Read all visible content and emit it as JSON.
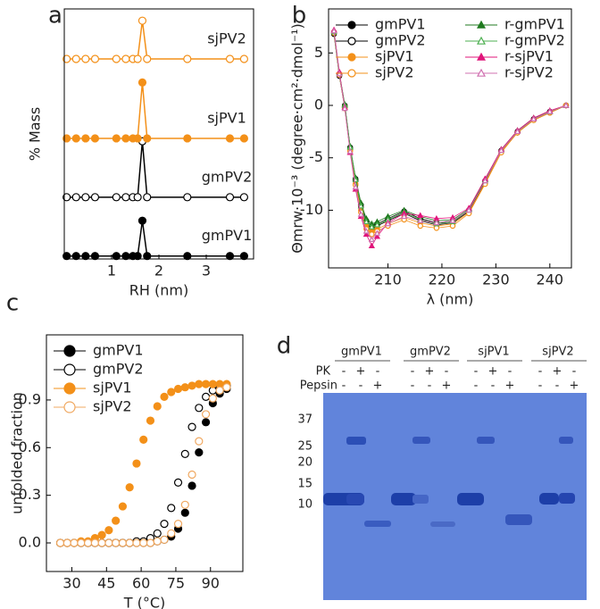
{
  "panel_labels": [
    "a",
    "b",
    "c",
    "d"
  ],
  "chart_data": [
    {
      "type": "line",
      "xlabel": "RH (nm)",
      "ylabel": "% Mass",
      "x": [
        0.05,
        0.25,
        0.45,
        0.65,
        1.1,
        1.3,
        1.45,
        1.55,
        1.65,
        1.75,
        2.6,
        3.5,
        3.8
      ],
      "xlim": [
        0,
        4.0
      ],
      "ylim": [
        -0.05,
        4.2
      ],
      "xticks": [
        1,
        2,
        3
      ],
      "series": [
        {
          "name": "gmPV1",
          "color": "#000000",
          "marker": "circle",
          "filled": true,
          "values": [
            0,
            0,
            0,
            0,
            0,
            0,
            0,
            0,
            0.6,
            0,
            0,
            0,
            0
          ]
        },
        {
          "name": "gmPV2",
          "color": "#000000",
          "marker": "circle",
          "filled": false,
          "values": [
            1.0,
            1.0,
            1.0,
            1.0,
            1.0,
            1.0,
            1.0,
            1.0,
            1.95,
            1.0,
            1.0,
            1.0,
            1.0
          ]
        },
        {
          "name": "sjPV1",
          "color": "#f39019",
          "marker": "circle",
          "filled": true,
          "values": [
            2.0,
            2.0,
            2.0,
            2.0,
            2.0,
            2.0,
            2.0,
            2.0,
            2.95,
            2.0,
            2.0,
            2.0,
            2.0
          ]
        },
        {
          "name": "sjPV2",
          "color": "#f39019",
          "marker": "circle",
          "filled": false,
          "values": [
            3.35,
            3.35,
            3.35,
            3.35,
            3.35,
            3.35,
            3.35,
            3.35,
            4.0,
            3.35,
            3.35,
            3.35,
            3.35
          ]
        }
      ]
    },
    {
      "type": "line",
      "xlabel": "λ (nm)",
      "ylabel": "Θmrw·10⁻³ (degree·cm²·dmol⁻¹)",
      "x": [
        200,
        201,
        202,
        203,
        204,
        205,
        206,
        207,
        208,
        210,
        213,
        216,
        219,
        222,
        225,
        228,
        231,
        234,
        237,
        240,
        243
      ],
      "xlim": [
        199,
        244
      ],
      "ylim": [
        -15.5,
        9.2
      ],
      "xticks": [
        210,
        220,
        230,
        240
      ],
      "yticks": [
        -10,
        -5,
        0,
        5
      ],
      "legend": "upper left",
      "series": [
        {
          "name": "gmPV1",
          "color": "#000000",
          "marker": "circle",
          "filled": true,
          "values": [
            7,
            3,
            0,
            -4,
            -7,
            -9.5,
            -11,
            -11.5,
            -11.3,
            -10.8,
            -10.1,
            -10.8,
            -11.2,
            -11.1,
            -10,
            -7.2,
            -4.3,
            -2.5,
            -1.3,
            -0.6,
            0
          ]
        },
        {
          "name": "gmPV2",
          "color": "#000000",
          "marker": "circle",
          "filled": false,
          "values": [
            6.8,
            2.8,
            -0.2,
            -4.2,
            -7.2,
            -9.7,
            -11.2,
            -11.8,
            -11.5,
            -11,
            -10.3,
            -11,
            -11.4,
            -11.2,
            -10.1,
            -7.3,
            -4.4,
            -2.6,
            -1.4,
            -0.7,
            0
          ]
        },
        {
          "name": "sjPV1",
          "color": "#f39019",
          "marker": "circle",
          "filled": true,
          "values": [
            7,
            3,
            -0.1,
            -4.3,
            -7.5,
            -10,
            -11.5,
            -12,
            -11.8,
            -11.3,
            -10.7,
            -11.2,
            -11.5,
            -11.3,
            -10.2,
            -7.4,
            -4.4,
            -2.6,
            -1.4,
            -0.7,
            0
          ]
        },
        {
          "name": "sjPV2",
          "color": "#f39019",
          "marker": "circle",
          "filled": false,
          "values": [
            6.9,
            2.9,
            -0.3,
            -4.4,
            -7.6,
            -10.2,
            -11.8,
            -12.3,
            -12,
            -11.5,
            -10.9,
            -11.5,
            -11.7,
            -11.5,
            -10.3,
            -7.5,
            -4.5,
            -2.6,
            -1.4,
            -0.7,
            0
          ]
        },
        {
          "name": "r-gmPV1",
          "color": "#1f7a1f",
          "marker": "triangle",
          "filled": true,
          "values": [
            7.1,
            3.1,
            0.1,
            -3.9,
            -6.9,
            -9.3,
            -10.8,
            -11.3,
            -11.1,
            -10.6,
            -10,
            -10.6,
            -11,
            -10.9,
            -9.9,
            -7.1,
            -4.2,
            -2.4,
            -1.2,
            -0.6,
            0
          ]
        },
        {
          "name": "r-gmPV2",
          "color": "#4caf50",
          "marker": "triangle",
          "filled": false,
          "values": [
            7,
            3,
            0,
            -4,
            -7.1,
            -9.6,
            -11.1,
            -11.6,
            -11.4,
            -10.9,
            -10.2,
            -10.9,
            -11.3,
            -11.1,
            -10,
            -7.2,
            -4.3,
            -2.5,
            -1.3,
            -0.6,
            0
          ]
        },
        {
          "name": "r-sjPV1",
          "color": "#e0157a",
          "marker": "triangle",
          "filled": true,
          "values": [
            7.2,
            3.2,
            -0.2,
            -4.5,
            -8,
            -10.6,
            -12.3,
            -13.4,
            -12.5,
            -11.2,
            -10.3,
            -10.5,
            -10.8,
            -10.7,
            -9.8,
            -7,
            -4.2,
            -2.4,
            -1.2,
            -0.5,
            0
          ]
        },
        {
          "name": "r-sjPV2",
          "color": "#d070b0",
          "marker": "triangle",
          "filled": false,
          "values": [
            7.1,
            3,
            -0.3,
            -4.4,
            -7.8,
            -10.4,
            -12,
            -12.8,
            -12.2,
            -11.3,
            -10.6,
            -11,
            -11.2,
            -11,
            -10,
            -7.2,
            -4.3,
            -2.5,
            -1.3,
            -0.6,
            0
          ]
        }
      ]
    },
    {
      "type": "scatter",
      "xlabel": "T (°C)",
      "ylabel": "unfolded fraction",
      "x": [
        25,
        28,
        31,
        34,
        37,
        40,
        43,
        46,
        49,
        52,
        55,
        58,
        61,
        64,
        67,
        70,
        73,
        76,
        79,
        82,
        85,
        88,
        91,
        94,
        97
      ],
      "xlim": [
        19,
        104
      ],
      "ylim": [
        -0.18,
        1.31
      ],
      "xticks": [
        30,
        45,
        60,
        75,
        90
      ],
      "yticks": [
        {
          "value": 0,
          "label": "0.0"
        },
        0.3,
        0.6,
        0.9
      ],
      "legend": "upper left",
      "series": [
        {
          "name": "gmPV1",
          "color": "#000000",
          "marker": "circle",
          "filled": true,
          "values": [
            0,
            0,
            0,
            0,
            0,
            0,
            0,
            0,
            0,
            0,
            0,
            0,
            0,
            0,
            0.01,
            0.02,
            0.04,
            0.09,
            0.19,
            0.36,
            0.57,
            0.76,
            0.88,
            0.94,
            0.97
          ]
        },
        {
          "name": "gmPV2",
          "color": "#000000",
          "marker": "circle",
          "filled": false,
          "values": [
            0,
            0,
            0,
            0,
            0,
            0,
            0,
            0,
            0,
            0,
            0,
            0.01,
            0.01,
            0.03,
            0.06,
            0.12,
            0.22,
            0.38,
            0.56,
            0.73,
            0.85,
            0.92,
            0.96,
            0.98,
            0.99
          ]
        },
        {
          "name": "sjPV1",
          "color": "#f39019",
          "marker": "circle",
          "filled": true,
          "values": [
            0,
            0,
            0,
            0.01,
            0.01,
            0.03,
            0.05,
            0.08,
            0.14,
            0.23,
            0.35,
            0.5,
            0.65,
            0.77,
            0.86,
            0.92,
            0.95,
            0.97,
            0.98,
            0.99,
            1.0,
            1.0,
            1.0,
            1.0,
            1.0
          ]
        },
        {
          "name": "sjPV2",
          "color": "#f0a860",
          "marker": "circle",
          "filled": false,
          "values": [
            0,
            0,
            0,
            0,
            0,
            0,
            0,
            0,
            0,
            0,
            0,
            0,
            0,
            0,
            0.01,
            0.02,
            0.06,
            0.12,
            0.24,
            0.43,
            0.64,
            0.81,
            0.91,
            0.96,
            0.98
          ]
        }
      ]
    }
  ],
  "gel": {
    "groups": [
      "gmPV1",
      "gmPV2",
      "sjPV1",
      "sjPV2"
    ],
    "rows": [
      {
        "label": "PK",
        "signs": [
          "-",
          "+",
          "-",
          "-",
          "+",
          "-",
          "-",
          "+",
          "-",
          "-",
          "+",
          "-"
        ]
      },
      {
        "label": "Pepsin",
        "signs": [
          "-",
          "-",
          "+",
          "-",
          "-",
          "+",
          "-",
          "-",
          "+",
          "-",
          "-",
          "+"
        ]
      }
    ],
    "markers": [
      37,
      25,
      20,
      15,
      10
    ]
  }
}
